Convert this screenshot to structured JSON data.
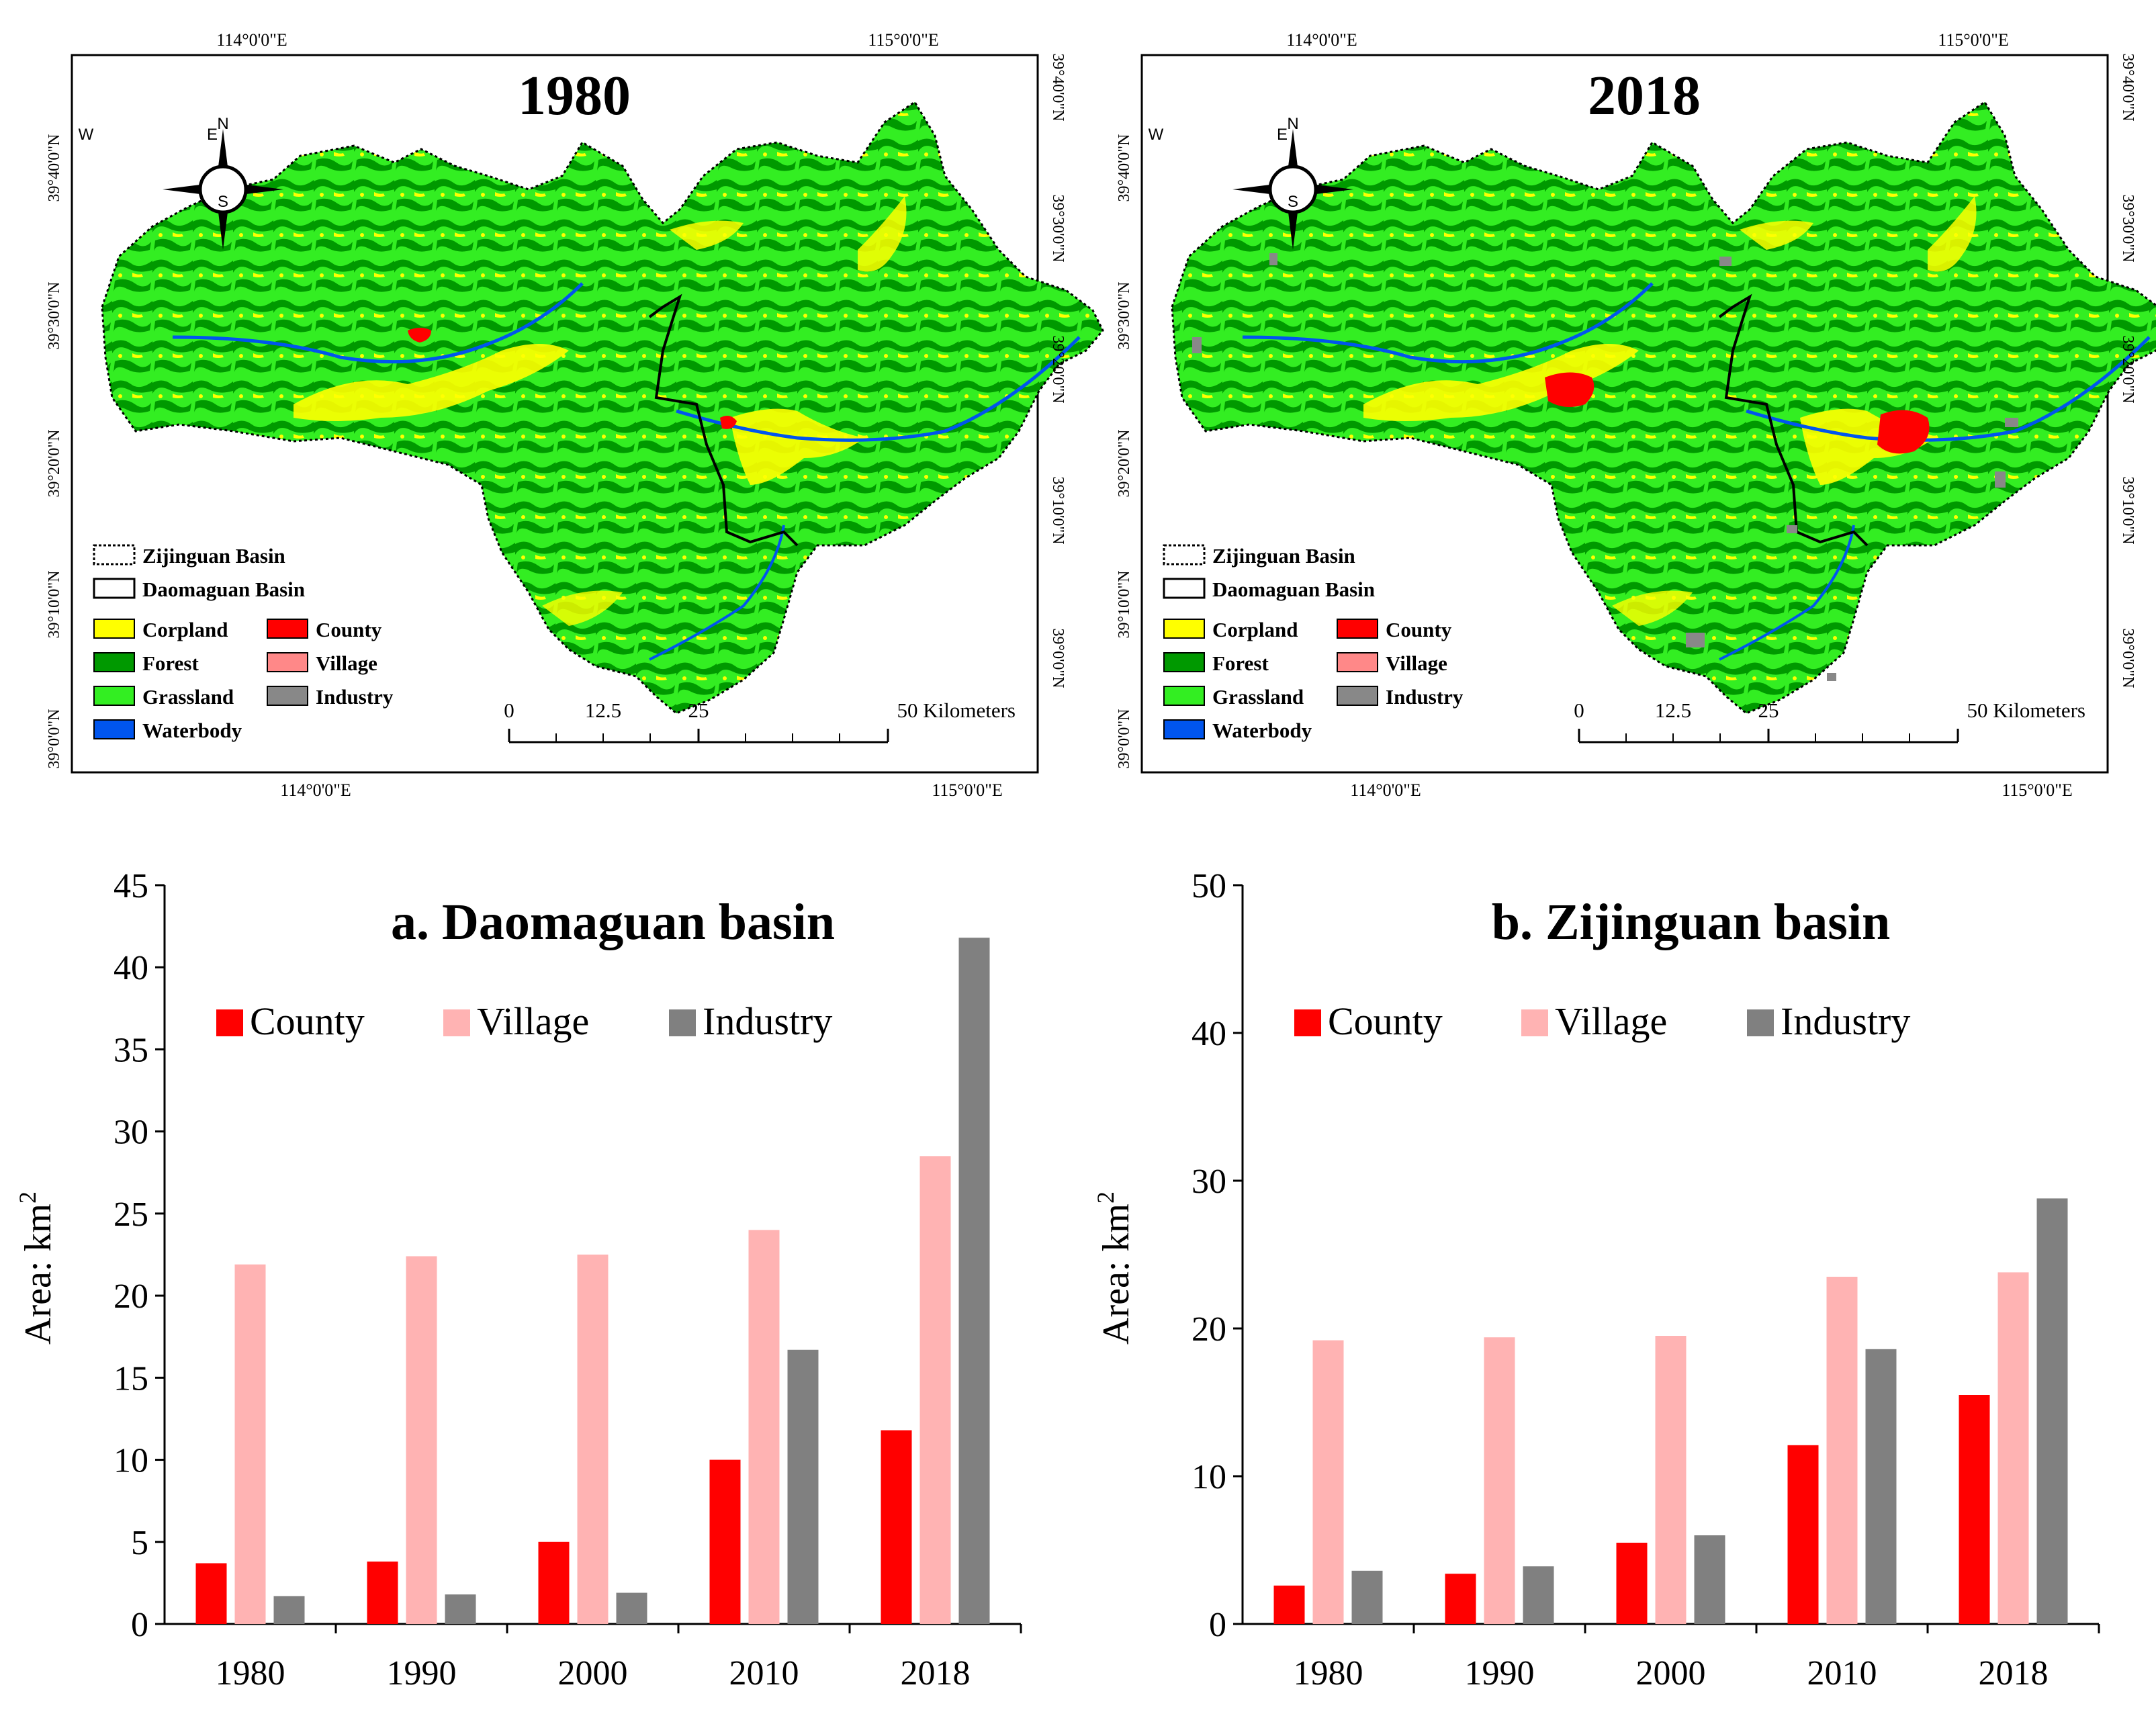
{
  "maps": [
    {
      "title": "1980",
      "top_lon_labels": [
        "114°0'0\"E",
        "115°0'0\"E"
      ],
      "bottom_lon_labels": [
        "114°0'0\"E",
        "115°0'0\"E"
      ],
      "left_lat_labels": [
        "39°40'0\"N",
        "39°30'0\"N",
        "39°20'0\"N",
        "39°10'0\"N",
        "39°0'0\"N"
      ],
      "right_lat_labels": [
        "39°40'0\"N",
        "39°30'0\"N",
        "39°20'0\"N",
        "39°10'0\"N",
        "39°0'0\"N"
      ],
      "compass": {
        "n": "N",
        "s": "S",
        "e": "E",
        "w": "W"
      },
      "legend": {
        "zijinguan": "Zijinguan Basin",
        "daomaguan": "Daomaguan Basin",
        "corpland": "Corpland",
        "forest": "Forest",
        "grassland": "Grassland",
        "waterbody": "Waterbody",
        "county": "County",
        "village": "Village",
        "industry": "Industry"
      },
      "scale": {
        "zero": "0",
        "mid1": "12.5",
        "mid2": "25",
        "end": "50 Kilometers"
      }
    },
    {
      "title": "2018",
      "top_lon_labels": [
        "114°0'0\"E",
        "115°0'0\"E"
      ],
      "bottom_lon_labels": [
        "114°0'0\"E",
        "115°0'0\"E"
      ],
      "left_lat_labels": [
        "39°40'0\"N",
        "39°30'0\"N",
        "39°20'0\"N",
        "39°10'0\"N",
        "39°0'0\"N"
      ],
      "right_lat_labels": [
        "39°40'0\"N",
        "39°30'0\"N",
        "39°20'0\"N",
        "39°10'0\"N",
        "39°0'0\"N"
      ],
      "compass": {
        "n": "N",
        "s": "S",
        "e": "E",
        "w": "W"
      },
      "legend": {
        "zijinguan": "Zijinguan Basin",
        "daomaguan": "Daomaguan Basin",
        "corpland": "Corpland",
        "forest": "Forest",
        "grassland": "Grassland",
        "waterbody": "Waterbody",
        "county": "County",
        "village": "Village",
        "industry": "Industry"
      },
      "scale": {
        "zero": "0",
        "mid1": "12.5",
        "mid2": "25",
        "end": "50 Kilometers"
      }
    }
  ],
  "colors": {
    "corpland": "#ffff00",
    "forest": "#009900",
    "grassland": "#33ee22",
    "waterbody": "#0055ee",
    "county": "#ff0000",
    "village": "#ff8888",
    "industry": "#888888",
    "bar_county": "#ff0000",
    "bar_village": "#ffb3b3",
    "bar_industry": "#808080"
  },
  "chart_data": [
    {
      "type": "bar",
      "title": "a. Daomaguan basin",
      "xlabel": "",
      "ylabel": "Area: km",
      "ylabel_superscript": "2",
      "ylim": [
        0,
        45
      ],
      "yticks": [
        0,
        5,
        10,
        15,
        20,
        25,
        30,
        35,
        40,
        45
      ],
      "categories": [
        "1980",
        "1990",
        "2000",
        "2010",
        "2018"
      ],
      "series": [
        {
          "name": "County",
          "values": [
            3.7,
            3.8,
            5.0,
            10.0,
            11.8
          ]
        },
        {
          "name": "Village",
          "values": [
            21.9,
            22.4,
            22.5,
            24.0,
            28.5
          ]
        },
        {
          "name": "Industry",
          "values": [
            1.7,
            1.8,
            1.9,
            16.7,
            41.8
          ]
        }
      ]
    },
    {
      "type": "bar",
      "title": "b. Zijinguan basin",
      "xlabel": "",
      "ylabel": "Area: km",
      "ylabel_superscript": "2",
      "ylim": [
        0,
        50
      ],
      "yticks": [
        0,
        10,
        20,
        30,
        40,
        50
      ],
      "categories": [
        "1980",
        "1990",
        "2000",
        "2010",
        "2018"
      ],
      "series": [
        {
          "name": "County",
          "values": [
            2.6,
            3.4,
            5.5,
            12.1,
            15.5
          ]
        },
        {
          "name": "Village",
          "values": [
            19.2,
            19.4,
            19.5,
            23.5,
            23.8
          ]
        },
        {
          "name": "Industry",
          "values": [
            3.6,
            3.9,
            6.0,
            18.6,
            28.8
          ]
        }
      ]
    }
  ]
}
